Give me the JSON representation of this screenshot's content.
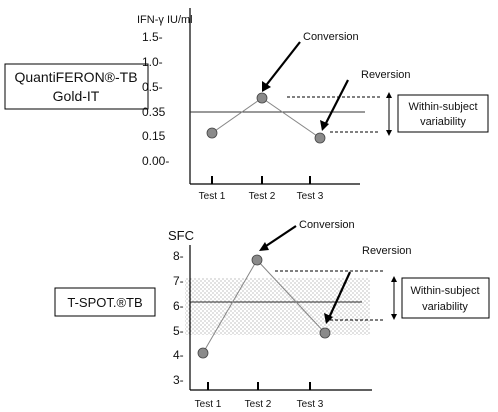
{
  "top_panel": {
    "assay_label_line1": "QuantiFERON®-TB",
    "assay_label_line2": "Gold-IT",
    "y_unit": "IFN-γ IU/ml",
    "y_ticks": [
      "1.5-",
      "1.0-",
      "0.5-",
      "0.35",
      "0.15",
      "0.00-"
    ],
    "x_ticks": [
      "Test 1",
      "Test 2",
      "Test 3"
    ],
    "conversion_label": "Conversion",
    "reversion_label": "Reversion",
    "variability_label_line1": "Within-subject",
    "variability_label_line2": "variability"
  },
  "bottom_panel": {
    "assay_label": "T-SPOT.®TB",
    "y_unit": "SFC",
    "y_ticks": [
      "8-",
      "7-",
      "6-",
      "5-",
      "4-",
      "3-"
    ],
    "x_ticks": [
      "Test 1",
      "Test 2",
      "Test 3"
    ],
    "conversion_label": "Conversion",
    "reversion_label": "Reversion",
    "variability_label_line1": "Within-subject",
    "variability_label_line2": "variability"
  },
  "colors": {
    "marker_fill": "#8a8a8a",
    "axis": "#000000",
    "connector": "#888888"
  }
}
